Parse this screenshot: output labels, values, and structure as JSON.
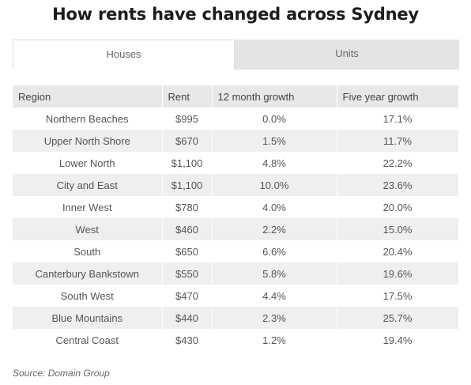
{
  "title": "How rents have changed across Sydney",
  "tabs": [
    {
      "label": "Houses",
      "active": true
    },
    {
      "label": "Units",
      "active": false
    }
  ],
  "table": {
    "headers": [
      "Region",
      "Rent",
      "12 month growth",
      "Five year growth"
    ],
    "rows": [
      [
        "Northern Beaches",
        "$995",
        "0.0%",
        "17.1%"
      ],
      [
        "Upper North Shore",
        "$670",
        "1.5%",
        "11.7%"
      ],
      [
        "Lower North",
        "$1,100",
        "4.8%",
        "22.2%"
      ],
      [
        "City and East",
        "$1,100",
        "10.0%",
        "23.6%"
      ],
      [
        "Inner West",
        "$780",
        "4.0%",
        "20.0%"
      ],
      [
        "West",
        "$460",
        "2.2%",
        "15.0%"
      ],
      [
        "South",
        "$650",
        "6.6%",
        "20.4%"
      ],
      [
        "Canterbury Bankstown",
        "$550",
        "5.8%",
        "19.6%"
      ],
      [
        "South West",
        "$470",
        "4.4%",
        "17.5%"
      ],
      [
        "Blue Mountains",
        "$440",
        "2.3%",
        "25.7%"
      ],
      [
        "Central Coast",
        "$430",
        "1.2%",
        "19.4%"
      ]
    ]
  },
  "source": "Source: Domain Group",
  "colors": {
    "header_bg": "#e8e8e8",
    "stripe_bg": "#efefef",
    "tab_inactive_bg": "#e4e4e4"
  }
}
